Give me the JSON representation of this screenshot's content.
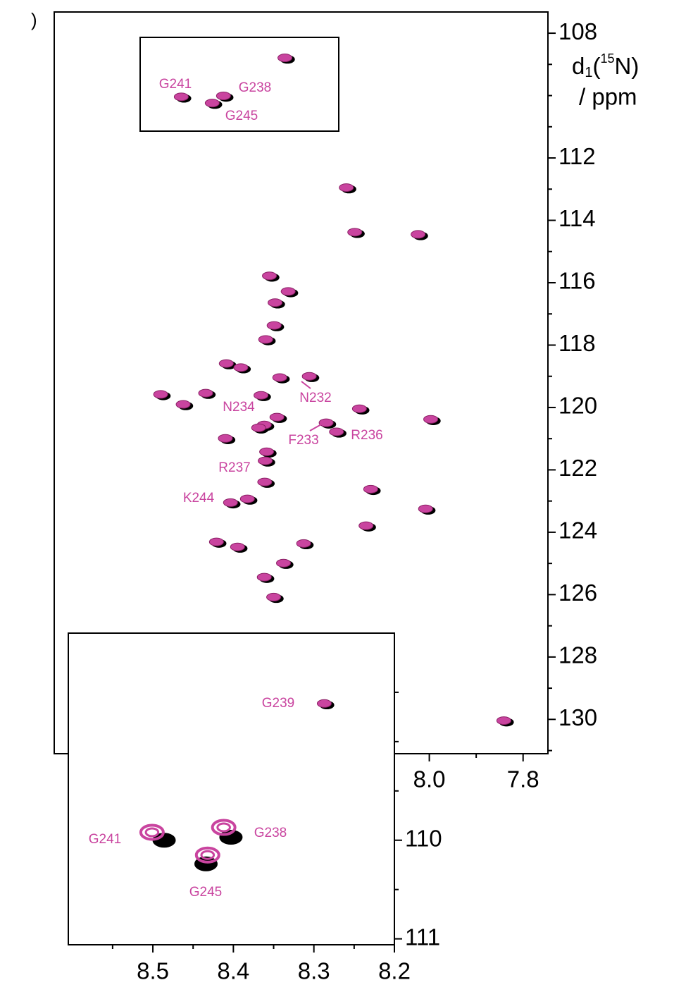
{
  "chart_data": [
    {
      "type": "scatter",
      "panel_label": ")",
      "ylabel_parts": [
        "d",
        "1",
        "(",
        "15",
        "N)",
        "/ ppm"
      ],
      "xlim": [
        8.8,
        7.747
      ],
      "ylim": [
        107.32,
        131.1
      ],
      "xticks": [
        {
          "value": 8.0,
          "label": "8.0"
        },
        7.8
      ],
      "xminorticks": [
        7.9
      ],
      "yticks": [
        108,
        112,
        114,
        116,
        118,
        120,
        122,
        124,
        126,
        128,
        130
      ],
      "yminorticks": [
        109,
        110,
        111,
        113,
        115,
        117,
        119,
        121,
        123,
        125,
        127,
        129,
        131
      ],
      "series": [
        {
          "color": "#000000",
          "x": [
            8.304,
            8.525,
            8.435,
            8.459,
            8.173,
            8.155,
            8.02,
            8.337,
            8.297,
            8.325,
            8.327,
            8.345,
            8.429,
            8.398,
            8.252,
            8.315,
            8.569,
            8.473,
            8.521,
            8.355,
            8.145,
            7.993,
            8.321,
            8.348,
            8.36,
            8.216,
            8.194,
            8.431,
            8.343,
            8.346,
            8.347,
            8.121,
            8.384,
            8.42,
            8.004,
            8.131,
            8.45,
            8.405,
            8.264,
            8.307,
            8.348,
            8.328,
            8.22,
            7.837
          ],
          "values": [
            108.84,
            110.09,
            110.06,
            110.29,
            113.0,
            114.43,
            114.5,
            115.83,
            116.33,
            116.69,
            117.42,
            117.87,
            118.64,
            118.77,
            119.05,
            119.09,
            119.63,
            119.59,
            119.95,
            119.66,
            120.09,
            120.43,
            120.36,
            120.61,
            120.7,
            120.54,
            120.83,
            121.04,
            121.47,
            121.76,
            122.44,
            122.67,
            122.98,
            123.1,
            123.3,
            123.84,
            124.36,
            124.52,
            124.41,
            125.04,
            125.49,
            126.13,
            129.54,
            130.09
          ]
        },
        {
          "color": "#c9449f",
          "x": [
            8.308,
            8.529,
            8.439,
            8.463,
            8.177,
            8.159,
            8.024,
            8.341,
            8.301,
            8.329,
            8.331,
            8.349,
            8.433,
            8.402,
            8.256,
            8.319,
            8.573,
            8.477,
            8.525,
            8.359,
            8.149,
            7.997,
            8.325,
            8.352,
            8.364,
            8.22,
            8.198,
            8.435,
            8.347,
            8.35,
            8.351,
            8.125,
            8.388,
            8.424,
            8.008,
            8.135,
            8.454,
            8.409,
            8.268,
            8.311,
            8.352,
            8.332,
            8.224,
            7.841
          ],
          "values": [
            108.79,
            110.04,
            110.01,
            110.24,
            112.95,
            114.38,
            114.45,
            115.78,
            116.28,
            116.64,
            117.37,
            117.82,
            118.59,
            118.72,
            119.0,
            119.04,
            119.58,
            119.54,
            119.9,
            119.61,
            120.04,
            120.38,
            120.31,
            120.56,
            120.65,
            120.49,
            120.78,
            120.99,
            121.42,
            121.71,
            122.39,
            122.62,
            122.93,
            123.05,
            123.25,
            123.79,
            124.31,
            124.47,
            124.36,
            124.99,
            125.44,
            126.08,
            129.49,
            130.04
          ]
        }
      ],
      "annotations": [
        "G241",
        "G238",
        "G245",
        "N232",
        "N234",
        "F233",
        "R236",
        "R237",
        "K244",
        "G239"
      ]
    },
    {
      "type": "scatter",
      "xlim": [
        8.605,
        8.2
      ],
      "ylim": [
        107.9,
        111.06
      ],
      "xticks": [
        8.5,
        8.4,
        8.3,
        8.2
      ],
      "xminorticks": [
        8.55,
        8.45,
        8.35,
        8.25
      ],
      "yticks": [
        110,
        111
      ],
      "yminorticks": [
        108.5,
        109,
        109.5,
        110.5
      ],
      "series": [
        {
          "color": "#000000",
          "x": [
            8.486,
            8.403,
            8.434
          ],
          "values": [
            110.0,
            109.97,
            110.24
          ]
        },
        {
          "color": "#c9449f",
          "x": [
            8.501,
            8.412,
            8.432
          ],
          "values": [
            109.92,
            109.87,
            110.15
          ]
        }
      ],
      "annotations": [
        "G241",
        "G238",
        "G245"
      ]
    }
  ]
}
